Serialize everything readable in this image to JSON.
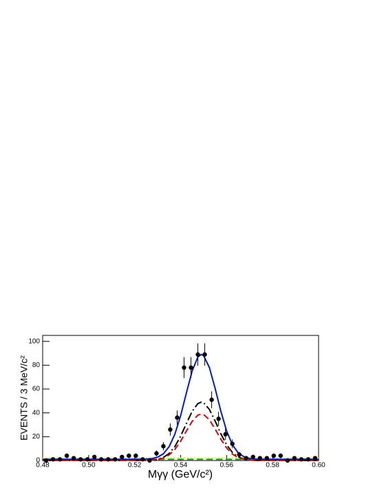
{
  "chart_data": {
    "type": "errorbar",
    "x_label": "Mγγ (GeV/c²)",
    "y_label": "EVENTS / 3 MeV/c²",
    "xlim": [
      0.48,
      0.6
    ],
    "ylim": [
      0,
      105
    ],
    "xticks": [
      0.48,
      {
        "value": 0.5,
        "label": "0.50"
      },
      0.52,
      0.54,
      0.56,
      0.58,
      {
        "value": 0.6,
        "label": "0.60"
      }
    ],
    "yticks": [
      0,
      20,
      40,
      60,
      80,
      100
    ],
    "points": {
      "color": "#000000",
      "x": [
        0.4815,
        0.4845,
        0.4875,
        0.4905,
        0.4935,
        0.4965,
        0.4995,
        0.5025,
        0.5055,
        0.5085,
        0.5115,
        0.5145,
        0.5175,
        0.5205,
        0.5235,
        0.5265,
        0.5295,
        0.5325,
        0.5355,
        0.5385,
        0.5415,
        0.5445,
        0.5475,
        0.5505,
        0.5535,
        0.5565,
        0.5595,
        0.5625,
        0.5655,
        0.5685,
        0.5715,
        0.5745,
        0.5775,
        0.5805,
        0.5835,
        0.5865,
        0.5895,
        0.5925,
        0.5955,
        0.5985
      ],
      "values": [
        0,
        1,
        1,
        4,
        2,
        1,
        1,
        3,
        1,
        1,
        1,
        3,
        4,
        4,
        1,
        0,
        6,
        12,
        26,
        36,
        78,
        78,
        89,
        89,
        51,
        35,
        22,
        14,
        5,
        2,
        3,
        2,
        2,
        4,
        4,
        0,
        2,
        1,
        1,
        2
      ],
      "errors": [
        0,
        1,
        1,
        2,
        1.4,
        1,
        1,
        1.7,
        1,
        1,
        1,
        1.7,
        2,
        2,
        1,
        0,
        2.4,
        3.5,
        5.1,
        6,
        8.8,
        8.8,
        9.4,
        9.4,
        7.1,
        5.9,
        4.7,
        3.7,
        2.2,
        1.4,
        1.7,
        1.4,
        1.4,
        2,
        2,
        0,
        1.4,
        1,
        1,
        1.4
      ]
    },
    "curves": [
      {
        "color": "#ffee00",
        "style": "dotted",
        "x": [
          0.48,
          0.6
        ],
        "values": [
          2,
          2
        ]
      },
      {
        "color": "#22aa22",
        "style": "dashed",
        "x": [
          0.48,
          0.6
        ],
        "values": [
          1,
          1
        ]
      },
      {
        "color": "#000000",
        "style": "dashdot",
        "x": [
          0.48,
          0.5,
          0.52,
          0.525,
          0.5275,
          0.53,
          0.5325,
          0.535,
          0.5375,
          0.54,
          0.5425,
          0.545,
          0.5475,
          0.549,
          0.55,
          0.5525,
          0.555,
          0.5575,
          0.56,
          0.5625,
          0.565,
          0.5675,
          0.57,
          0.5725,
          0.575,
          0.58,
          0.6
        ],
        "values": [
          0,
          0,
          0,
          0.1,
          0.3,
          1.0,
          2.6,
          5.9,
          11.7,
          20.4,
          31.0,
          41.2,
          47.8,
          49,
          48.5,
          42.9,
          33.2,
          22.4,
          13.2,
          6.8,
          3.1,
          1.2,
          0.4,
          0.1,
          0,
          0,
          0
        ]
      },
      {
        "color": "#dd0000",
        "style": "dashed",
        "x": [
          0.48,
          0.5,
          0.52,
          0.525,
          0.5275,
          0.53,
          0.5325,
          0.535,
          0.5375,
          0.54,
          0.5425,
          0.545,
          0.5475,
          0.549,
          0.55,
          0.5525,
          0.555,
          0.5575,
          0.56,
          0.5625,
          0.565,
          0.5675,
          0.57,
          0.5725,
          0.575,
          0.58,
          0.6
        ],
        "values": [
          0,
          0,
          0,
          0.1,
          0.3,
          0.8,
          2.1,
          4.7,
          9.3,
          16.2,
          24.7,
          32.8,
          38.1,
          39,
          38.6,
          34.2,
          26.4,
          17.9,
          10.5,
          5.4,
          2.4,
          1.0,
          0.3,
          0.1,
          0,
          0,
          0
        ]
      },
      {
        "color": "#0018d8",
        "style": "solid",
        "x": [
          0.48,
          0.5,
          0.52,
          0.525,
          0.5275,
          0.53,
          0.5325,
          0.535,
          0.5375,
          0.54,
          0.5425,
          0.545,
          0.5475,
          0.549,
          0.55,
          0.5525,
          0.555,
          0.5575,
          0.56,
          0.5625,
          0.565,
          0.5675,
          0.57,
          0.5725,
          0.575,
          0.58,
          0.6
        ],
        "values": [
          1,
          1,
          1,
          1.2,
          1.6,
          2.8,
          5.6,
          11.6,
          22.1,
          37.6,
          56.7,
          75.0,
          86.9,
          89,
          88.0,
          78.1,
          60.6,
          41.3,
          24.8,
          13.3,
          6.5,
          3.2,
          1.7,
          1.2,
          1.1,
          1,
          1
        ]
      }
    ]
  }
}
